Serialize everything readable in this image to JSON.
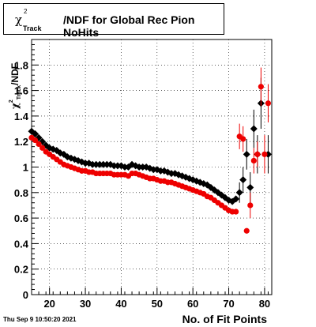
{
  "title": {
    "symbol": "χ",
    "superscript": "2",
    "subscript": "Track",
    "text": "/NDF for Global Rec Pion NoHits"
  },
  "timestamp": "Thu Sep  9 10:50:20 2021",
  "chart_data": {
    "type": "scatter",
    "xlabel": "No. of Fit Points",
    "ylabel": {
      "symbol": "χ",
      "superscript": "2",
      "subscript": "Track",
      "text": "/NDF"
    },
    "xlim": [
      15,
      82
    ],
    "ylim": [
      0,
      2.0
    ],
    "x_ticks": [
      20,
      30,
      40,
      50,
      60,
      70,
      80
    ],
    "y_ticks": [
      0,
      0.2,
      0.4,
      0.6,
      0.8,
      1,
      1.2,
      1.4,
      1.6,
      1.8
    ],
    "grid": true,
    "series": [
      {
        "color": "#000000",
        "marker": "diamond",
        "points": [
          [
            15,
            1.28
          ],
          [
            16,
            1.26
          ],
          [
            17,
            1.23
          ],
          [
            18,
            1.2
          ],
          [
            19,
            1.17
          ],
          [
            20,
            1.15
          ],
          [
            21,
            1.14
          ],
          [
            22,
            1.13
          ],
          [
            23,
            1.11
          ],
          [
            24,
            1.1
          ],
          [
            25,
            1.08
          ],
          [
            26,
            1.07
          ],
          [
            27,
            1.06
          ],
          [
            28,
            1.05
          ],
          [
            29,
            1.04
          ],
          [
            30,
            1.03
          ],
          [
            31,
            1.03
          ],
          [
            32,
            1.02
          ],
          [
            33,
            1.02
          ],
          [
            34,
            1.02
          ],
          [
            35,
            1.02
          ],
          [
            36,
            1.02
          ],
          [
            37,
            1.02
          ],
          [
            38,
            1.01
          ],
          [
            39,
            1.01
          ],
          [
            40,
            1.01
          ],
          [
            41,
            1.0
          ],
          [
            42,
            1.0
          ],
          [
            43,
            1.02
          ],
          [
            44,
            1.01
          ],
          [
            45,
            1.0
          ],
          [
            46,
            1.0
          ],
          [
            47,
            1.0
          ],
          [
            48,
            0.99
          ],
          [
            49,
            0.98
          ],
          [
            50,
            0.98
          ],
          [
            51,
            0.97
          ],
          [
            52,
            0.97
          ],
          [
            53,
            0.96
          ],
          [
            54,
            0.95
          ],
          [
            55,
            0.95
          ],
          [
            56,
            0.94
          ],
          [
            57,
            0.93
          ],
          [
            58,
            0.92
          ],
          [
            59,
            0.91
          ],
          [
            60,
            0.9
          ],
          [
            61,
            0.89
          ],
          [
            62,
            0.88
          ],
          [
            63,
            0.87
          ],
          [
            64,
            0.86
          ],
          [
            65,
            0.84
          ],
          [
            66,
            0.82
          ],
          [
            67,
            0.8
          ],
          [
            68,
            0.78
          ],
          [
            69,
            0.76
          ],
          [
            70,
            0.74
          ],
          [
            71,
            0.73
          ],
          [
            72,
            0.75
          ],
          [
            73,
            0.8
          ],
          [
            74,
            0.9
          ],
          [
            75,
            1.1
          ],
          [
            76,
            0.84
          ],
          [
            77,
            1.3
          ],
          [
            78,
            1.1
          ],
          [
            79,
            1.5
          ],
          [
            81,
            1.1
          ]
        ],
        "errors": [
          [
            73,
            0.08
          ],
          [
            74,
            0.1
          ],
          [
            75,
            0.12
          ],
          [
            76,
            0.12
          ],
          [
            77,
            0.15
          ],
          [
            78,
            0.15
          ],
          [
            79,
            0.2
          ],
          [
            81,
            0.15
          ]
        ]
      },
      {
        "color": "#ee0000",
        "marker": "circle",
        "points": [
          [
            15,
            1.23
          ],
          [
            16,
            1.21
          ],
          [
            17,
            1.18
          ],
          [
            18,
            1.15
          ],
          [
            19,
            1.12
          ],
          [
            20,
            1.1
          ],
          [
            21,
            1.08
          ],
          [
            22,
            1.06
          ],
          [
            23,
            1.04
          ],
          [
            24,
            1.02
          ],
          [
            25,
            1.01
          ],
          [
            26,
            1.0
          ],
          [
            27,
            0.99
          ],
          [
            28,
            0.98
          ],
          [
            29,
            0.97
          ],
          [
            30,
            0.97
          ],
          [
            31,
            0.96
          ],
          [
            32,
            0.96
          ],
          [
            33,
            0.95
          ],
          [
            34,
            0.95
          ],
          [
            35,
            0.95
          ],
          [
            36,
            0.95
          ],
          [
            37,
            0.95
          ],
          [
            38,
            0.94
          ],
          [
            39,
            0.94
          ],
          [
            40,
            0.94
          ],
          [
            41,
            0.94
          ],
          [
            42,
            0.93
          ],
          [
            43,
            0.95
          ],
          [
            44,
            0.95
          ],
          [
            45,
            0.94
          ],
          [
            46,
            0.93
          ],
          [
            47,
            0.92
          ],
          [
            48,
            0.91
          ],
          [
            49,
            0.91
          ],
          [
            50,
            0.9
          ],
          [
            51,
            0.89
          ],
          [
            52,
            0.89
          ],
          [
            53,
            0.88
          ],
          [
            54,
            0.88
          ],
          [
            55,
            0.87
          ],
          [
            56,
            0.86
          ],
          [
            57,
            0.85
          ],
          [
            58,
            0.84
          ],
          [
            59,
            0.83
          ],
          [
            60,
            0.82
          ],
          [
            61,
            0.81
          ],
          [
            62,
            0.8
          ],
          [
            63,
            0.79
          ],
          [
            64,
            0.77
          ],
          [
            65,
            0.76
          ],
          [
            66,
            0.74
          ],
          [
            67,
            0.72
          ],
          [
            68,
            0.7
          ],
          [
            69,
            0.68
          ],
          [
            70,
            0.66
          ],
          [
            71,
            0.65
          ],
          [
            72,
            0.65
          ],
          [
            73,
            1.24
          ],
          [
            74,
            1.22
          ],
          [
            75,
            0.5
          ],
          [
            76,
            0.7
          ],
          [
            77,
            1.05
          ],
          [
            78,
            1.1
          ],
          [
            79,
            1.63
          ],
          [
            80,
            1.1
          ],
          [
            81,
            1.5
          ]
        ],
        "errors": [
          [
            73,
            0.1
          ],
          [
            74,
            0.1
          ],
          [
            76,
            0.1
          ],
          [
            77,
            0.1
          ],
          [
            78,
            0.1
          ],
          [
            79,
            0.15
          ],
          [
            80,
            0.15
          ],
          [
            81,
            0.15
          ]
        ]
      }
    ]
  }
}
